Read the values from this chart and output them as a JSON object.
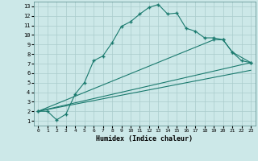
{
  "xlabel": "Humidex (Indice chaleur)",
  "bg_color": "#cce8e8",
  "grid_color": "#aacccc",
  "line_color": "#1a7a6e",
  "xlim": [
    -0.5,
    23.5
  ],
  "ylim": [
    0.5,
    13.5
  ],
  "xticks": [
    0,
    1,
    2,
    3,
    4,
    5,
    6,
    7,
    8,
    9,
    10,
    11,
    12,
    13,
    14,
    15,
    16,
    17,
    18,
    19,
    20,
    21,
    22,
    23
  ],
  "yticks": [
    1,
    2,
    3,
    4,
    5,
    6,
    7,
    8,
    9,
    10,
    11,
    12,
    13
  ],
  "line1_x": [
    0,
    1,
    2,
    3,
    4,
    5,
    6,
    7,
    8,
    9,
    10,
    11,
    12,
    13,
    14,
    15,
    16,
    17,
    18,
    19,
    20,
    21,
    22,
    23
  ],
  "line1_y": [
    2.0,
    2.0,
    1.1,
    1.7,
    3.8,
    5.0,
    7.3,
    7.8,
    9.2,
    10.9,
    11.4,
    12.2,
    12.9,
    13.2,
    12.2,
    12.3,
    10.7,
    10.4,
    9.7,
    9.7,
    9.5,
    8.2,
    7.3,
    7.1
  ],
  "line2_x": [
    0,
    19,
    20,
    21,
    23
  ],
  "line2_y": [
    2.0,
    9.5,
    9.5,
    8.2,
    7.1
  ],
  "line3_x": [
    0,
    23
  ],
  "line3_y": [
    2.0,
    7.1
  ],
  "line4_x": [
    0,
    23
  ],
  "line4_y": [
    2.0,
    6.3
  ]
}
